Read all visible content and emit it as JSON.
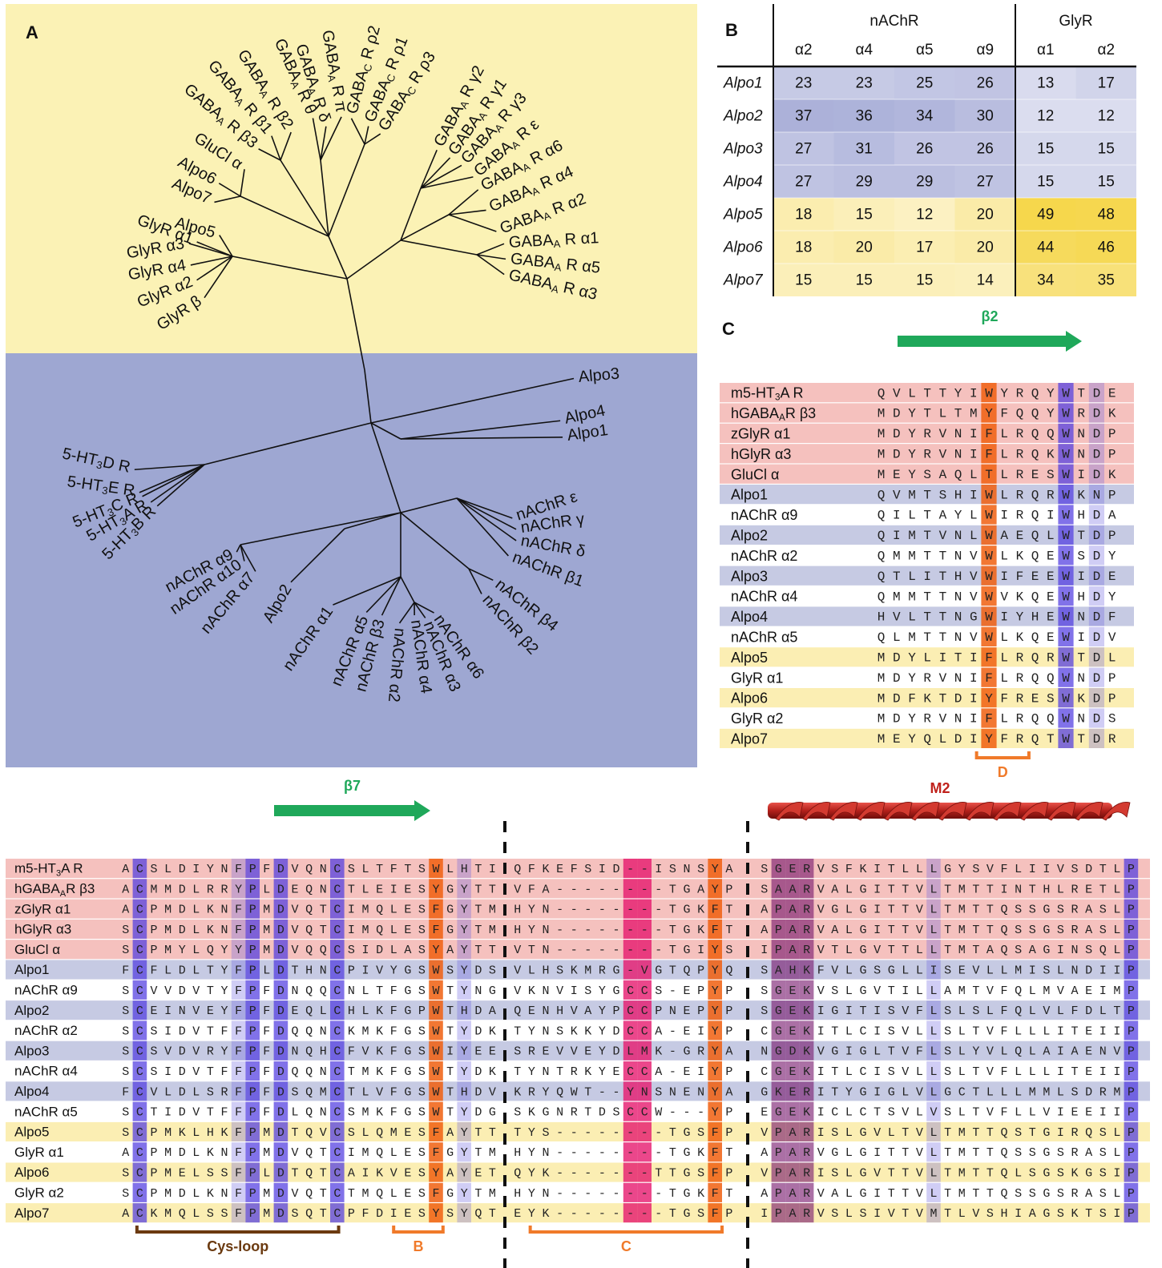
{
  "panel_a": {
    "label": "A",
    "leaves": [
      {
        "parts": [
          "GABA",
          "C",
          " R ρ2"
        ]
      },
      {
        "parts": [
          "GABA",
          "C",
          " R ρ1"
        ]
      },
      {
        "parts": [
          "GABA",
          "C",
          " R ρ3"
        ]
      },
      {
        "parts": [
          "GABA",
          "A",
          " R π"
        ]
      },
      {
        "parts": [
          "GABA",
          "A",
          " R δ"
        ]
      },
      {
        "parts": [
          "GABA",
          "A",
          " R θ"
        ]
      },
      {
        "parts": [
          "GABA",
          "A",
          " R β2"
        ]
      },
      {
        "parts": [
          "GABA",
          "A",
          " R β1"
        ]
      },
      {
        "parts": [
          "GABA",
          "A",
          " R β3"
        ]
      },
      {
        "parts": [
          "GluCl α"
        ]
      },
      {
        "parts": [
          "Alpo6"
        ]
      },
      {
        "parts": [
          "Alpo7"
        ]
      },
      {
        "parts": [
          "Alpo5"
        ]
      },
      {
        "parts": [
          "GlyR α1"
        ]
      },
      {
        "parts": [
          "GlyR α3"
        ]
      },
      {
        "parts": [
          "GlyR α4"
        ]
      },
      {
        "parts": [
          "GlyR α2"
        ]
      },
      {
        "parts": [
          "GlyR β"
        ]
      },
      {
        "parts": [
          "GABA",
          "A",
          " R γ2"
        ]
      },
      {
        "parts": [
          "GABA",
          "A",
          " R γ1"
        ]
      },
      {
        "parts": [
          "GABA",
          "A",
          " R γ3"
        ]
      },
      {
        "parts": [
          "GABA",
          "A",
          " R ε"
        ]
      },
      {
        "parts": [
          "GABA",
          "A",
          " R α6"
        ]
      },
      {
        "parts": [
          "GABA",
          "A",
          " R α4"
        ]
      },
      {
        "parts": [
          "GABA",
          "A",
          " R α2"
        ]
      },
      {
        "parts": [
          "GABA",
          "A",
          " R α1"
        ]
      },
      {
        "parts": [
          "GABA",
          "A",
          " R α5"
        ]
      },
      {
        "parts": [
          "GABA",
          "A",
          " R α3"
        ]
      },
      {
        "parts": [
          "Alpo3"
        ]
      },
      {
        "parts": [
          "Alpo4"
        ]
      },
      {
        "parts": [
          "Alpo1"
        ]
      },
      {
        "parts": [
          "5-HT",
          "3",
          "D R"
        ]
      },
      {
        "parts": [
          "5-HT",
          "3",
          "E R"
        ]
      },
      {
        "parts": [
          "5-HT",
          "3",
          "C R"
        ]
      },
      {
        "parts": [
          "5-HT",
          "3",
          "A R"
        ]
      },
      {
        "parts": [
          "5-HT",
          "3",
          "B R"
        ]
      },
      {
        "parts": [
          "nAChR ε"
        ]
      },
      {
        "parts": [
          "nAChR γ"
        ]
      },
      {
        "parts": [
          "nAChR δ"
        ]
      },
      {
        "parts": [
          "nAChR β1"
        ]
      },
      {
        "parts": [
          "nAChR β4"
        ]
      },
      {
        "parts": [
          "nAChR β2"
        ]
      },
      {
        "parts": [
          "nAChR α9"
        ]
      },
      {
        "parts": [
          "nAChR α10"
        ]
      },
      {
        "parts": [
          "nAChR α7"
        ]
      },
      {
        "parts": [
          "Alpo2"
        ]
      },
      {
        "parts": [
          "nAChR α1"
        ]
      },
      {
        "parts": [
          "nAChR α5"
        ]
      },
      {
        "parts": [
          "nAChR β3"
        ]
      },
      {
        "parts": [
          "nAChR α2"
        ]
      },
      {
        "parts": [
          "nAChR α4"
        ]
      },
      {
        "parts": [
          "nAChR α3"
        ]
      },
      {
        "parts": [
          "nAChR α6"
        ]
      }
    ]
  },
  "panel_b": {
    "label": "B",
    "groups": [
      {
        "name": "nAChR",
        "columns": [
          "α2",
          "α4",
          "α5",
          "α9"
        ]
      },
      {
        "name": "GlyR",
        "columns": [
          "α1",
          "α2"
        ]
      }
    ],
    "rows": [
      {
        "name": "Alpo1",
        "values": [
          23,
          23,
          25,
          26,
          13,
          17
        ],
        "color": "#8e95cc"
      },
      {
        "name": "Alpo2",
        "values": [
          37,
          36,
          34,
          30,
          12,
          12
        ],
        "color": "#8e95cc"
      },
      {
        "name": "Alpo3",
        "values": [
          27,
          31,
          26,
          26,
          15,
          15
        ],
        "color": "#8e95cc"
      },
      {
        "name": "Alpo4",
        "values": [
          27,
          29,
          29,
          27,
          15,
          15
        ],
        "color": "#8e95cc"
      },
      {
        "name": "Alpo5",
        "values": [
          18,
          15,
          12,
          20,
          49,
          48
        ],
        "color": "#f5d440"
      },
      {
        "name": "Alpo6",
        "values": [
          18,
          20,
          17,
          20,
          44,
          46
        ],
        "color": "#f5d440"
      },
      {
        "name": "Alpo7",
        "values": [
          15,
          15,
          15,
          14,
          34,
          35
        ],
        "color": "#f5d440"
      }
    ]
  },
  "panel_c": {
    "label": "C",
    "strand": "β2",
    "region": "D",
    "rows": [
      {
        "name": [
          "m5-HT",
          "3",
          "A R"
        ],
        "sequence": "QVLTTYIWYRQYWTDE",
        "color": "#f5c1be"
      },
      {
        "name": [
          "hGABA",
          "A",
          "R β3"
        ],
        "sequence": "MDYTLTMYFQQYWRDK",
        "color": "#f5c1be"
      },
      {
        "name": [
          "zGlyR α1"
        ],
        "sequence": "MDYRVNIFLRQQWNDP",
        "color": "#f5c1be"
      },
      {
        "name": [
          "hGlyR α3"
        ],
        "sequence": "MDYRVNIFLRQKWNDP",
        "color": "#f5c1be"
      },
      {
        "name": [
          "GluCl α"
        ],
        "sequence": "MEYSAQLTLRESWIDK",
        "color": "#f5c1be"
      },
      {
        "name": [
          "Alpo1"
        ],
        "sequence": "QVMTSHIWLRQRWKNP",
        "color": "#c6cae3"
      },
      {
        "name": [
          "nAChR α9"
        ],
        "sequence": "QILTAYLWIRQIWHDA",
        "color": "#ffffff"
      },
      {
        "name": [
          "Alpo2"
        ],
        "sequence": "QIMTVNLWAEQLWTDP",
        "color": "#c6cae3"
      },
      {
        "name": [
          "nAChR α2"
        ],
        "sequence": "QMMTTNVWLKQEWSDY",
        "color": "#ffffff"
      },
      {
        "name": [
          "Alpo3"
        ],
        "sequence": "QTLITHVWIFEEWIDE",
        "color": "#c6cae3"
      },
      {
        "name": [
          "nAChR α4"
        ],
        "sequence": "QMMTTNVWVKQEWHDY",
        "color": "#ffffff"
      },
      {
        "name": [
          "Alpo4"
        ],
        "sequence": "HVLTTNGWIYHEWNDF",
        "color": "#c6cae3"
      },
      {
        "name": [
          "nAChR α5"
        ],
        "sequence": "QLMTTNVWLKQEWIDV",
        "color": "#ffffff"
      },
      {
        "name": [
          "Alpo5"
        ],
        "sequence": "MDYLITIFLRQRWTDL",
        "color": "#fbeeb3"
      },
      {
        "name": [
          "GlyR α1"
        ],
        "sequence": "MDYRVNIFLRQQWNDP",
        "color": "#ffffff"
      },
      {
        "name": [
          "Alpo6"
        ],
        "sequence": "MDFKTDIYFRESWKDP",
        "color": "#fbeeb3"
      },
      {
        "name": [
          "GlyR α2"
        ],
        "sequence": "MDYRVNIFLRQQWNDS",
        "color": "#ffffff"
      },
      {
        "name": [
          "Alpo7"
        ],
        "sequence": "MEYQLDIYFRQTWTDR",
        "color": "#fbeeb3"
      }
    ]
  },
  "panel_d": {
    "strand": "β7",
    "helix": "M2",
    "regions": [
      "Cys-loop",
      "B",
      "C"
    ],
    "rows": [
      {
        "name": [
          "m5-HT",
          "3",
          "A R"
        ],
        "segments": [
          "ACSLDIYNFPFDVQNCSLTFTSWLHTI",
          "QFKEFSID--ISNSYA",
          "SGERVSFKITLLLGYSVFLIIVSDTLP"
        ],
        "color": "#f5c1be"
      },
      {
        "name": [
          "hGABA",
          "A",
          "R β3"
        ],
        "segments": [
          "ACMMDLRRYPLDEQNCTLEIESYGYTT",
          "VFA--------TGAYP",
          "SAARVALGITTVLTMTTINTHLRETLP"
        ],
        "color": "#f5c1be"
      },
      {
        "name": [
          "zGlyR α1"
        ],
        "segments": [
          "ACPMDLKNFPMDVQTCIMQLESFGYTM",
          "HYN--------TGKFT",
          "APARVGLGITTVLTMTTQSSGSRASLP"
        ],
        "color": "#f5c1be"
      },
      {
        "name": [
          "hGlyR α3"
        ],
        "segments": [
          "SCPMDLKNFPMDVQTCIMQLESFGYTM",
          "HYN--------TGKFT",
          "APARVALGITTVLTMTTQSSGSRASLP"
        ],
        "color": "#f5c1be"
      },
      {
        "name": [
          "GluCl α"
        ],
        "segments": [
          "SCPMYLQYYPMDVQQCSIDLASYAYTT",
          "VTN--------TGIYS",
          "IPARVTLGVTTLLTMTAQSAGINSQLP"
        ],
        "color": "#f5c1be"
      },
      {
        "name": [
          "Alpo1"
        ],
        "segments": [
          "FCFLDLTYFPLDTHNCPIVYGSWSYDS",
          "VLHSKMRG-VGTQPYQ",
          "SAHKFVLGSGLLISEVLLMISLNDIIP"
        ],
        "color": "#c6cae3"
      },
      {
        "name": [
          "nAChR α9"
        ],
        "segments": [
          "SCVVDVTYFPFDNQQCNLTFGSWTYNG",
          "VKNVISYGCCS-EPYP",
          "SGEKVSLGVTILLAMTVFQLMVAEIMP"
        ],
        "color": "#ffffff"
      },
      {
        "name": [
          "Alpo2"
        ],
        "segments": [
          "SCEINVEYFPFDEQLCHLKFGPWTHDA",
          "QENHVAYPCCPNEPYP",
          "SGEKIGITISVFLSLSLFQLVLFDLTP"
        ],
        "color": "#c6cae3"
      },
      {
        "name": [
          "nAChR α2"
        ],
        "segments": [
          "SCSIDVTFFPFDQQNCKMKFGSWTYDK",
          "TYNSKKYDCCA-EIYP",
          "CGEKITLCISVLLSLTVFLLLITEIIP"
        ],
        "color": "#ffffff"
      },
      {
        "name": [
          "Alpo3"
        ],
        "segments": [
          "SCSVDVRYFPFDNQHCFVKFGSWIYEE",
          "SREVVEYDLMK-GRYA",
          "NGDKVGIGLTVFLSLYVLQLAIAENVP"
        ],
        "color": "#c6cae3"
      },
      {
        "name": [
          "nAChR α4"
        ],
        "segments": [
          "SCSIDVTFFPFDQQNCTMKFGSWTYDK",
          "TYNTRKYECCA-EIYP",
          "CGEKITLCISVLLSLTVFLLLITEIIP"
        ],
        "color": "#ffffff"
      },
      {
        "name": [
          "Alpo4"
        ],
        "segments": [
          "FCVLDLSRFPFDSQMCTLVFGSWTHDV",
          "KRYQWT--YNSNENYA",
          "GKERITYGIGLVLGCTLLLMMLSDRMP"
        ],
        "color": "#c6cae3"
      },
      {
        "name": [
          "nAChR α5"
        ],
        "segments": [
          "SCTIDVTFFPFDLQNCSMKFGSWTYDG",
          "SKGNRTDSCCW---YP",
          "EGEKICLCTSVLVSLTVFLLVIEEIIP"
        ],
        "color": "#ffffff"
      },
      {
        "name": [
          "Alpo5"
        ],
        "segments": [
          "SCPMKLHKFPMDTQVCSLQMESFAYTT",
          "TYS--------TGSFP",
          "VPARISLGVLTVLTMTTQSTGIRQSLP"
        ],
        "color": "#fbeeb3"
      },
      {
        "name": [
          "GlyR α1"
        ],
        "segments": [
          "ACPMDLKNFPMDVQTCIMQLESFGYTM",
          "HYN--------TGKFT",
          "APARVGLGITTVLTMTTQSSGSRASLP"
        ],
        "color": "#ffffff"
      },
      {
        "name": [
          "Alpo6"
        ],
        "segments": [
          "SCPMELSSFPLDTQTCAIKVESYAYET",
          "QYK-------TTGSFP",
          "VPARISLGVTTVLTMTTQLSGSKGSIP"
        ],
        "color": "#fbeeb3"
      },
      {
        "name": [
          "GlyR α2"
        ],
        "segments": [
          "SCPMDLKNFPMDVQTCTMQLESFGYTM",
          "HYN--------TGKFT",
          "APARVALGITTVLTMTTQSSGSRASLP"
        ],
        "color": "#ffffff"
      },
      {
        "name": [
          "Alpo7"
        ],
        "segments": [
          "ACKMQLSSFPMDSQTCPFDIESYSYQT",
          "EYK--------TGSFP",
          "IPARVSLSIVTVMTLVSHIAGSKTSIP"
        ],
        "color": "#fbeeb3"
      }
    ]
  }
}
